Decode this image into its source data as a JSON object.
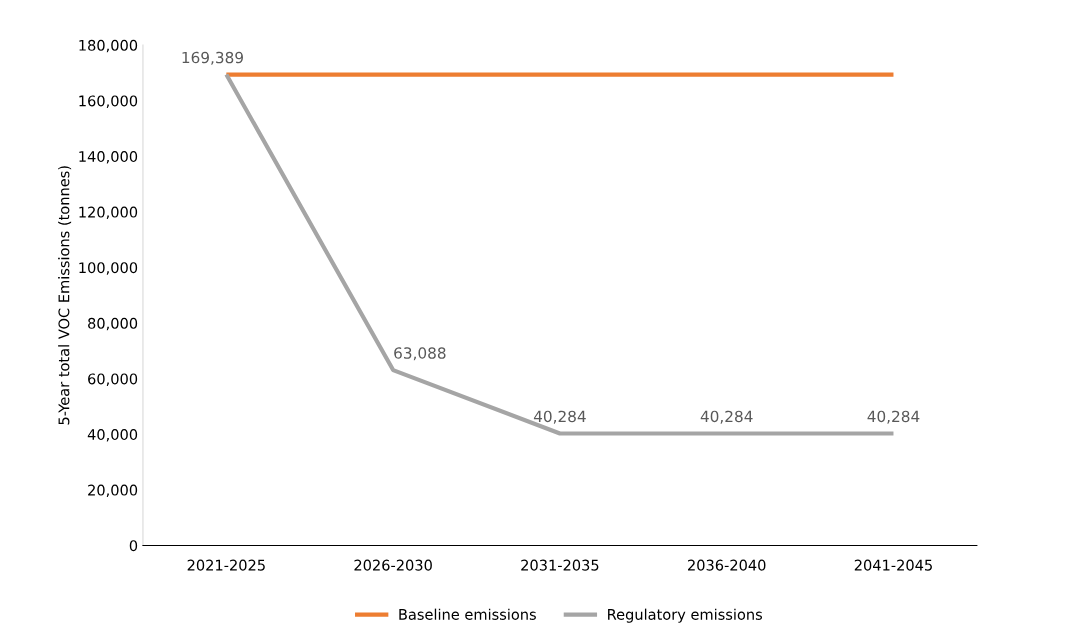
{
  "chart_data": {
    "type": "line",
    "ylabel": "5-Year total VOC Emissions (tonnes)",
    "categories": [
      "2021-2025",
      "2026-2030",
      "2031-2035",
      "2036-2040",
      "2041-2045"
    ],
    "series": [
      {
        "name": "Baseline emissions",
        "color": "#ed7d31",
        "values": [
          169389,
          169389,
          169389,
          169389,
          169389
        ]
      },
      {
        "name": "Regulatory emissions",
        "color": "#a5a5a5",
        "values": [
          169389,
          63088,
          40284,
          40284,
          40284
        ],
        "value_labels": [
          "169,389",
          "63,088",
          "40,284",
          "40,284",
          "40,284"
        ]
      }
    ],
    "ylim": [
      0,
      180000
    ],
    "yticks": [
      {
        "value": 0,
        "label": "0"
      },
      {
        "value": 20000,
        "label": "20,000"
      },
      {
        "value": 40000,
        "label": "40,000"
      },
      {
        "value": 60000,
        "label": "60,000"
      },
      {
        "value": 80000,
        "label": "80,000"
      },
      {
        "value": 100000,
        "label": "100,000"
      },
      {
        "value": 120000,
        "label": "120,000"
      },
      {
        "value": 140000,
        "label": "140,000"
      },
      {
        "value": 160000,
        "label": "160,000"
      },
      {
        "value": 180000,
        "label": "180,000"
      }
    ],
    "grid": false,
    "legend": "bottom",
    "marker": "none",
    "line_style": "solid"
  }
}
